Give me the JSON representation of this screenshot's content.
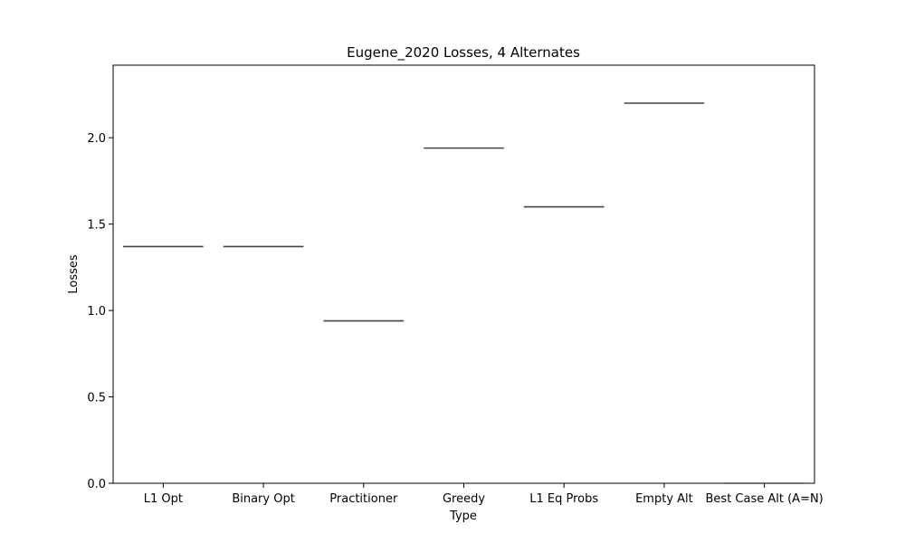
{
  "chart_data": {
    "type": "box",
    "title": "Eugene_2020 Losses, 4 Alternates",
    "xlabel": "Type",
    "ylabel": "Losses",
    "categories": [
      "L1 Opt",
      "Binary Opt",
      "Practitioner",
      "Greedy",
      "L1 Eq Probs",
      "Empty Alt",
      "Best Case Alt (A=N)"
    ],
    "values": [
      1.37,
      1.37,
      0.94,
      1.94,
      1.6,
      2.2,
      0.0
    ],
    "ylim": [
      0.0,
      2.42
    ],
    "yticks": [
      0.0,
      0.5,
      1.0,
      1.5,
      2.0
    ],
    "ytick_labels": [
      "0.0",
      "0.5",
      "1.0",
      "1.5",
      "2.0"
    ],
    "grid": false,
    "colors": {
      "line": "#444444",
      "axis": "#000000"
    }
  }
}
